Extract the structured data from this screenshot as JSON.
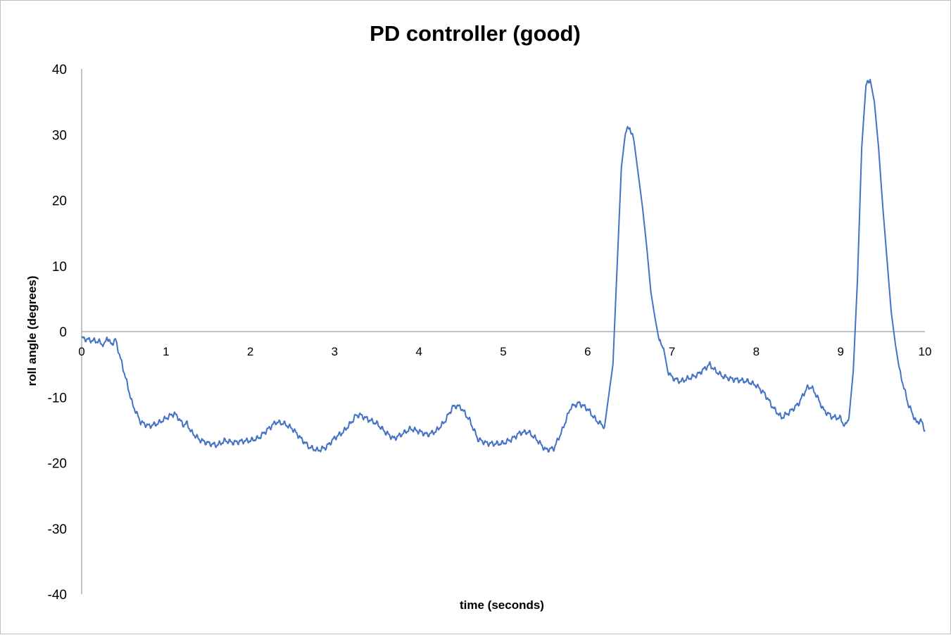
{
  "chart_data": {
    "type": "line",
    "title": "PD controller (good)",
    "xlabel": "time (seconds)",
    "ylabel": "roll angle (degrees)",
    "xlim": [
      0,
      10
    ],
    "ylim": [
      -40,
      40
    ],
    "x_ticks": [
      "0",
      "1",
      "2",
      "3",
      "4",
      "5",
      "6",
      "7",
      "8",
      "9",
      "10"
    ],
    "y_ticks": [
      "40",
      "30",
      "20",
      "10",
      "0",
      "-10",
      "-20",
      "-30",
      "-40"
    ],
    "grid": false,
    "legend": "none",
    "line_color": "#4472c4",
    "series": [
      {
        "x": [
          0,
          0.1,
          0.2,
          0.27,
          0.3,
          0.35,
          0.4,
          0.5,
          0.55,
          0.6,
          0.7,
          0.8,
          0.9,
          1.0,
          1.05,
          1.1,
          1.15,
          1.2,
          1.25,
          1.3,
          1.4,
          1.5,
          1.6,
          1.65,
          1.7,
          1.8,
          1.9,
          2.0,
          2.1,
          2.2,
          2.3,
          2.4,
          2.5,
          2.6,
          2.7,
          2.8,
          2.9,
          3.0,
          3.1,
          3.2,
          3.25,
          3.3,
          3.4,
          3.5,
          3.6,
          3.7,
          3.8,
          3.9,
          4.0,
          4.1,
          4.2,
          4.3,
          4.4,
          4.45,
          4.5,
          4.6,
          4.7,
          4.8,
          4.9,
          5.0,
          5.1,
          5.2,
          5.3,
          5.4,
          5.5,
          5.6,
          5.7,
          5.8,
          5.9,
          6.0,
          6.1,
          6.2,
          6.3,
          6.35,
          6.4,
          6.45,
          6.5,
          6.55,
          6.6,
          6.65,
          6.7,
          6.75,
          6.8,
          6.85,
          6.9,
          6.95,
          7.0,
          7.05,
          7.1,
          7.2,
          7.3,
          7.4,
          7.45,
          7.5,
          7.6,
          7.7,
          7.8,
          7.9,
          8.0,
          8.1,
          8.2,
          8.3,
          8.4,
          8.5,
          8.6,
          8.65,
          8.7,
          8.8,
          8.9,
          9.0,
          9.05,
          9.1,
          9.15,
          9.2,
          9.25,
          9.3,
          9.35,
          9.4,
          9.45,
          9.5,
          9.55,
          9.6,
          9.65,
          9.7,
          9.8,
          9.9,
          9.95,
          10.0
        ],
        "y": [
          -1,
          -1.3,
          -1.5,
          -2.1,
          -0.8,
          -2.0,
          -1.2,
          -6,
          -8.5,
          -11,
          -13.8,
          -14.4,
          -14.0,
          -13.2,
          -12.8,
          -12.5,
          -13.2,
          -14.2,
          -14.0,
          -15.3,
          -16.5,
          -17.0,
          -17.3,
          -17.0,
          -16.6,
          -16.9,
          -16.7,
          -16.6,
          -16.2,
          -15.0,
          -13.8,
          -14.0,
          -14.8,
          -16.3,
          -17.6,
          -18.1,
          -17.6,
          -16.2,
          -15.3,
          -13.8,
          -12.8,
          -12.7,
          -13.4,
          -14.0,
          -15.3,
          -16.3,
          -15.6,
          -14.8,
          -15.2,
          -15.7,
          -15.2,
          -13.8,
          -11.5,
          -11.3,
          -11.6,
          -13.5,
          -16.4,
          -17.0,
          -17.1,
          -17.0,
          -16.4,
          -15.4,
          -15.3,
          -16.5,
          -18.0,
          -17.8,
          -15.0,
          -11.5,
          -10.9,
          -11.8,
          -13.5,
          -14.5,
          -5,
          10,
          25,
          30.5,
          31.1,
          29,
          24,
          19,
          13,
          6,
          2,
          -1.5,
          -2.5,
          -6,
          -7,
          -7.3,
          -7.6,
          -7.1,
          -6.6,
          -5.5,
          -5.0,
          -5.8,
          -6.8,
          -7.2,
          -7.4,
          -7.6,
          -8.2,
          -9.5,
          -11.6,
          -13.1,
          -12.2,
          -11.0,
          -8.6,
          -8.4,
          -9.4,
          -12.0,
          -13.0,
          -13.2,
          -14.5,
          -13,
          -6,
          8,
          28,
          37.5,
          38.4,
          35,
          28,
          19,
          11,
          3,
          -2,
          -6,
          -11,
          -13.9,
          -13.5,
          -15
        ]
      }
    ]
  }
}
